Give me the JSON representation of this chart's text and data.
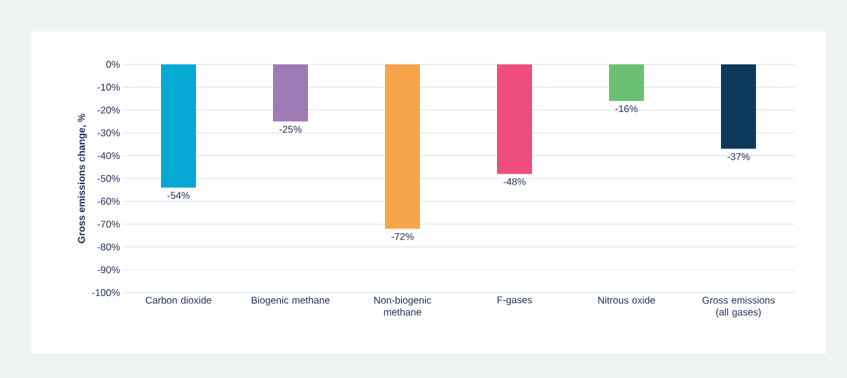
{
  "chart_data": {
    "type": "bar",
    "ylabel": "Gross emissions change, %",
    "categories": [
      "Carbon dioxide",
      "Biogenic methane",
      "Non-biogenic methane",
      "F-gases",
      "Nitrous oxide",
      "Gross emissions (all gases)"
    ],
    "values": [
      -54,
      -25,
      -72,
      -48,
      -16,
      -37
    ],
    "colors": [
      "#06a9d4",
      "#9e7bb5",
      "#f6a54a",
      "#ee4d7d",
      "#6cc074",
      "#0d3a5c"
    ],
    "value_labels": [
      "-54%",
      "-25%",
      "-72%",
      "-48%",
      "-16%",
      "-37%"
    ],
    "ylim": [
      -100,
      0
    ],
    "yticks": [
      {
        "value": -100,
        "label": "-100%"
      },
      {
        "value": -90,
        "label": "-90%"
      },
      {
        "value": -80,
        "label": "-80%"
      },
      {
        "value": -70,
        "label": "-70%"
      },
      {
        "value": -60,
        "label": "-60%"
      },
      {
        "value": -50,
        "label": "-50%"
      },
      {
        "value": -40,
        "label": "-40%"
      },
      {
        "value": -30,
        "label": "-30%"
      },
      {
        "value": -20,
        "label": "-20%"
      },
      {
        "value": -10,
        "label": "-10%"
      },
      {
        "value": 0,
        "label": "0%"
      }
    ],
    "grid": "y"
  }
}
